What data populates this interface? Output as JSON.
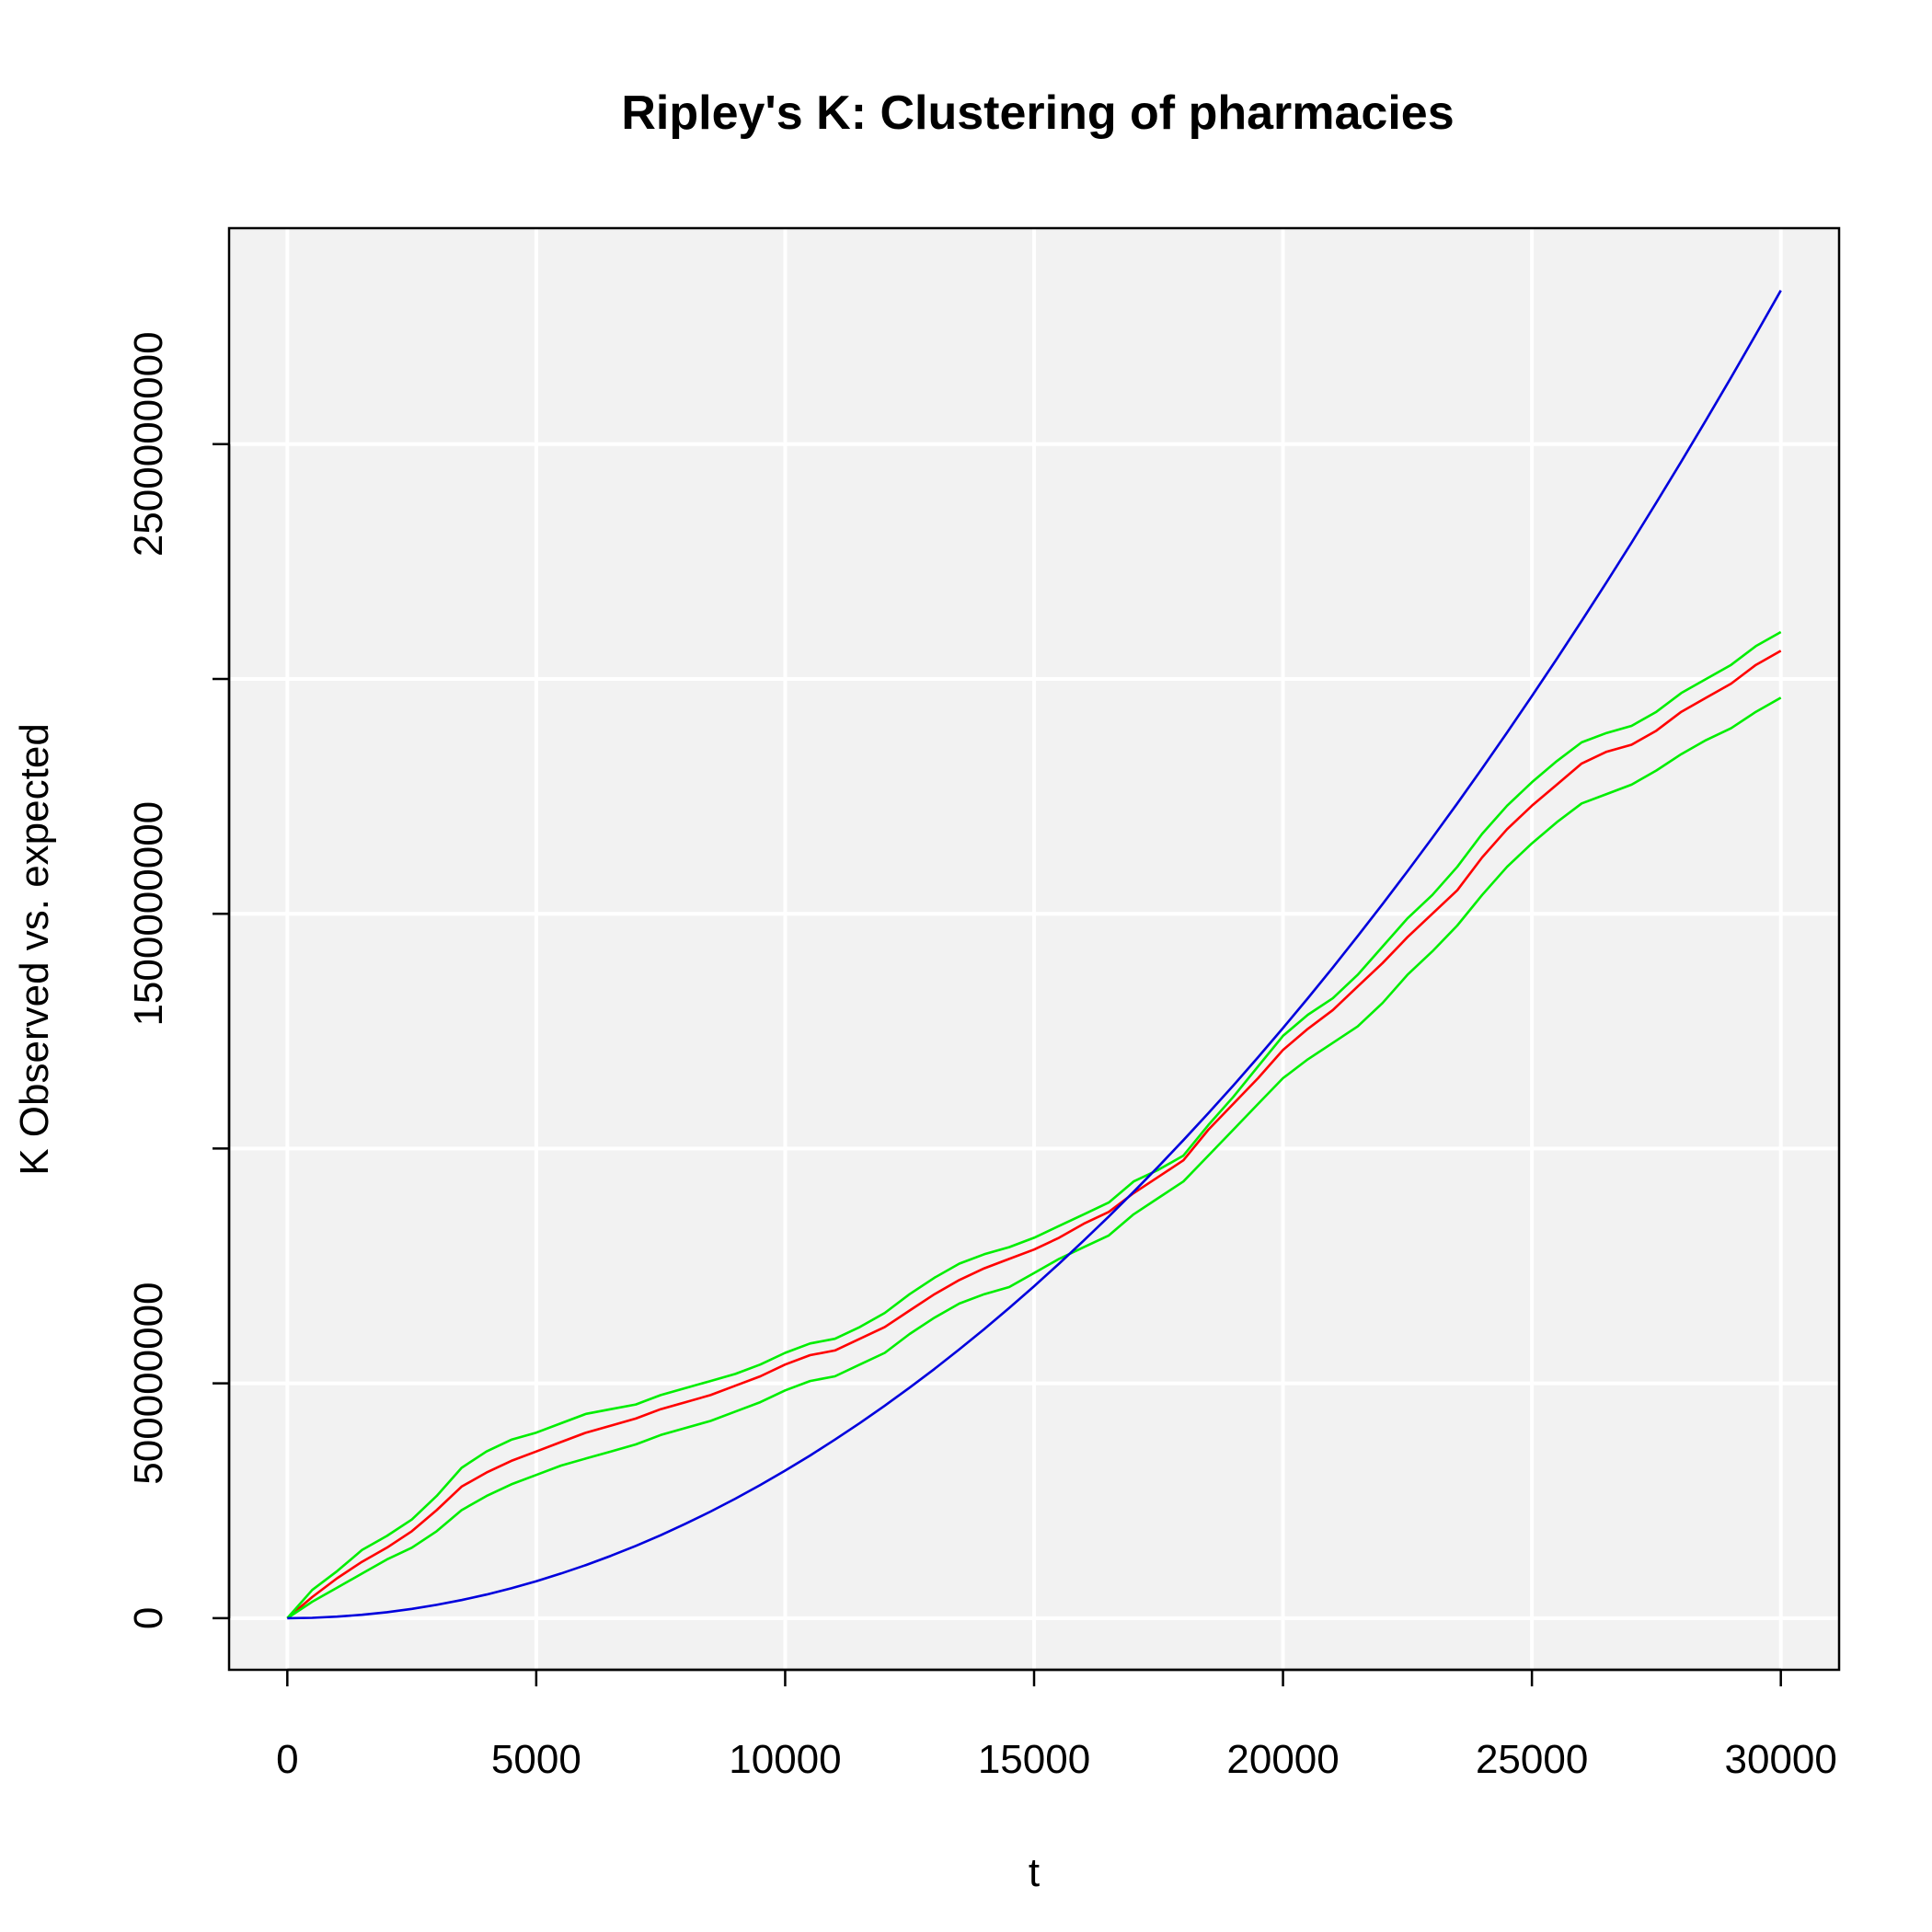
{
  "chart_data": {
    "type": "line",
    "title": "Ripley's K: Clustering of pharmacies",
    "xlabel": "t",
    "ylabel": "K Observed vs. expected",
    "xlim": [
      -1170,
      31170
    ],
    "ylim": [
      -110000000,
      2960000000
    ],
    "x_ticks": [
      0,
      5000,
      10000,
      15000,
      20000,
      25000,
      30000
    ],
    "x_tick_labels": [
      "0",
      "5000",
      "10000",
      "15000",
      "20000",
      "25000",
      "30000"
    ],
    "y_ticks": [
      0,
      500000000,
      1000000000,
      1500000000,
      2000000000,
      2500000000
    ],
    "y_tick_labels": [
      "0",
      "500000000",
      "",
      "1500000000",
      "",
      "2500000000"
    ],
    "grid": true,
    "background": "#f2f2f2",
    "x": [
      0,
      500,
      1000,
      1500,
      2000,
      2500,
      3000,
      3500,
      4000,
      4500,
      5000,
      5500,
      6000,
      6500,
      7000,
      7500,
      8000,
      8500,
      9000,
      9500,
      10000,
      10500,
      11000,
      11500,
      12000,
      12500,
      13000,
      13500,
      14000,
      14500,
      15000,
      15500,
      16000,
      16500,
      17000,
      17500,
      18000,
      18500,
      19000,
      19500,
      20000,
      20500,
      21000,
      21500,
      22000,
      22500,
      23000,
      23500,
      24000,
      24500,
      25000,
      25500,
      26000,
      26500,
      27000,
      27500,
      28000,
      28500,
      29000,
      29500,
      30000
    ],
    "series": [
      {
        "color": "#ff0000",
        "values": [
          0,
          45000000,
          85000000,
          120000000,
          150000000,
          185000000,
          230000000,
          280000000,
          310000000,
          335000000,
          355000000,
          375000000,
          395000000,
          410000000,
          425000000,
          445000000,
          460000000,
          475000000,
          495000000,
          515000000,
          540000000,
          560000000,
          570000000,
          595000000,
          620000000,
          655000000,
          690000000,
          720000000,
          745000000,
          765000000,
          785000000,
          810000000,
          840000000,
          865000000,
          905000000,
          940000000,
          975000000,
          1040000000,
          1095000000,
          1150000000,
          1210000000,
          1255000000,
          1295000000,
          1345000000,
          1395000000,
          1450000000,
          1500000000,
          1550000000,
          1620000000,
          1680000000,
          1730000000,
          1775000000,
          1820000000,
          1845000000,
          1860000000,
          1890000000,
          1930000000,
          1960000000,
          1990000000,
          2030000000,
          2060000000
        ]
      },
      {
        "color": "#00ee00",
        "values": [
          0,
          60000000,
          100000000,
          145000000,
          175000000,
          210000000,
          260000000,
          320000000,
          355000000,
          380000000,
          395000000,
          415000000,
          435000000,
          445000000,
          455000000,
          475000000,
          490000000,
          505000000,
          520000000,
          540000000,
          565000000,
          585000000,
          595000000,
          620000000,
          650000000,
          690000000,
          725000000,
          755000000,
          775000000,
          790000000,
          810000000,
          835000000,
          860000000,
          885000000,
          930000000,
          955000000,
          985000000,
          1050000000,
          1110000000,
          1175000000,
          1240000000,
          1285000000,
          1320000000,
          1370000000,
          1430000000,
          1490000000,
          1540000000,
          1600000000,
          1670000000,
          1730000000,
          1780000000,
          1825000000,
          1865000000,
          1885000000,
          1900000000,
          1930000000,
          1970000000,
          2000000000,
          2030000000,
          2070000000,
          2100000000
        ]
      },
      {
        "color": "#00ee00",
        "values": [
          0,
          35000000,
          65000000,
          95000000,
          125000000,
          150000000,
          185000000,
          230000000,
          260000000,
          285000000,
          305000000,
          325000000,
          340000000,
          355000000,
          370000000,
          390000000,
          405000000,
          420000000,
          440000000,
          460000000,
          485000000,
          505000000,
          515000000,
          540000000,
          565000000,
          605000000,
          640000000,
          670000000,
          690000000,
          705000000,
          735000000,
          765000000,
          790000000,
          815000000,
          860000000,
          895000000,
          930000000,
          985000000,
          1040000000,
          1095000000,
          1150000000,
          1190000000,
          1225000000,
          1260000000,
          1310000000,
          1370000000,
          1420000000,
          1475000000,
          1540000000,
          1600000000,
          1650000000,
          1695000000,
          1735000000,
          1755000000,
          1775000000,
          1805000000,
          1840000000,
          1870000000,
          1895000000,
          1930000000,
          1960000000
        ]
      },
      {
        "color": "#0000dd",
        "formula": "pi*t^2",
        "values": [
          0,
          785398,
          3141593,
          7068583,
          12566371,
          19634954,
          28274334,
          38484510,
          50265482,
          63617251,
          78539816,
          95033178,
          113097336,
          132732290,
          153938040,
          176714587,
          201061930,
          226980069,
          254469005,
          283528737,
          314159265,
          346360590,
          380132711,
          415475628,
          452389342,
          490873852,
          530929158,
          572555261,
          615752160,
          660519855,
          706858347,
          754767635,
          804247719,
          855298600,
          907920277,
          962112750,
          1017876020,
          1075210086,
          1134114948,
          1194590607,
          1256637061,
          1320254313,
          1385442360,
          1452201204,
          1520530844,
          1590431281,
          1661902514,
          1734944543,
          1809557368,
          1885740990,
          1963495408,
          2042820623,
          2123716634,
          2206183441,
          2290221044,
          2375829444,
          2463008640,
          2551758633,
          2642079422,
          2733971007,
          2827433388
        ]
      }
    ]
  }
}
